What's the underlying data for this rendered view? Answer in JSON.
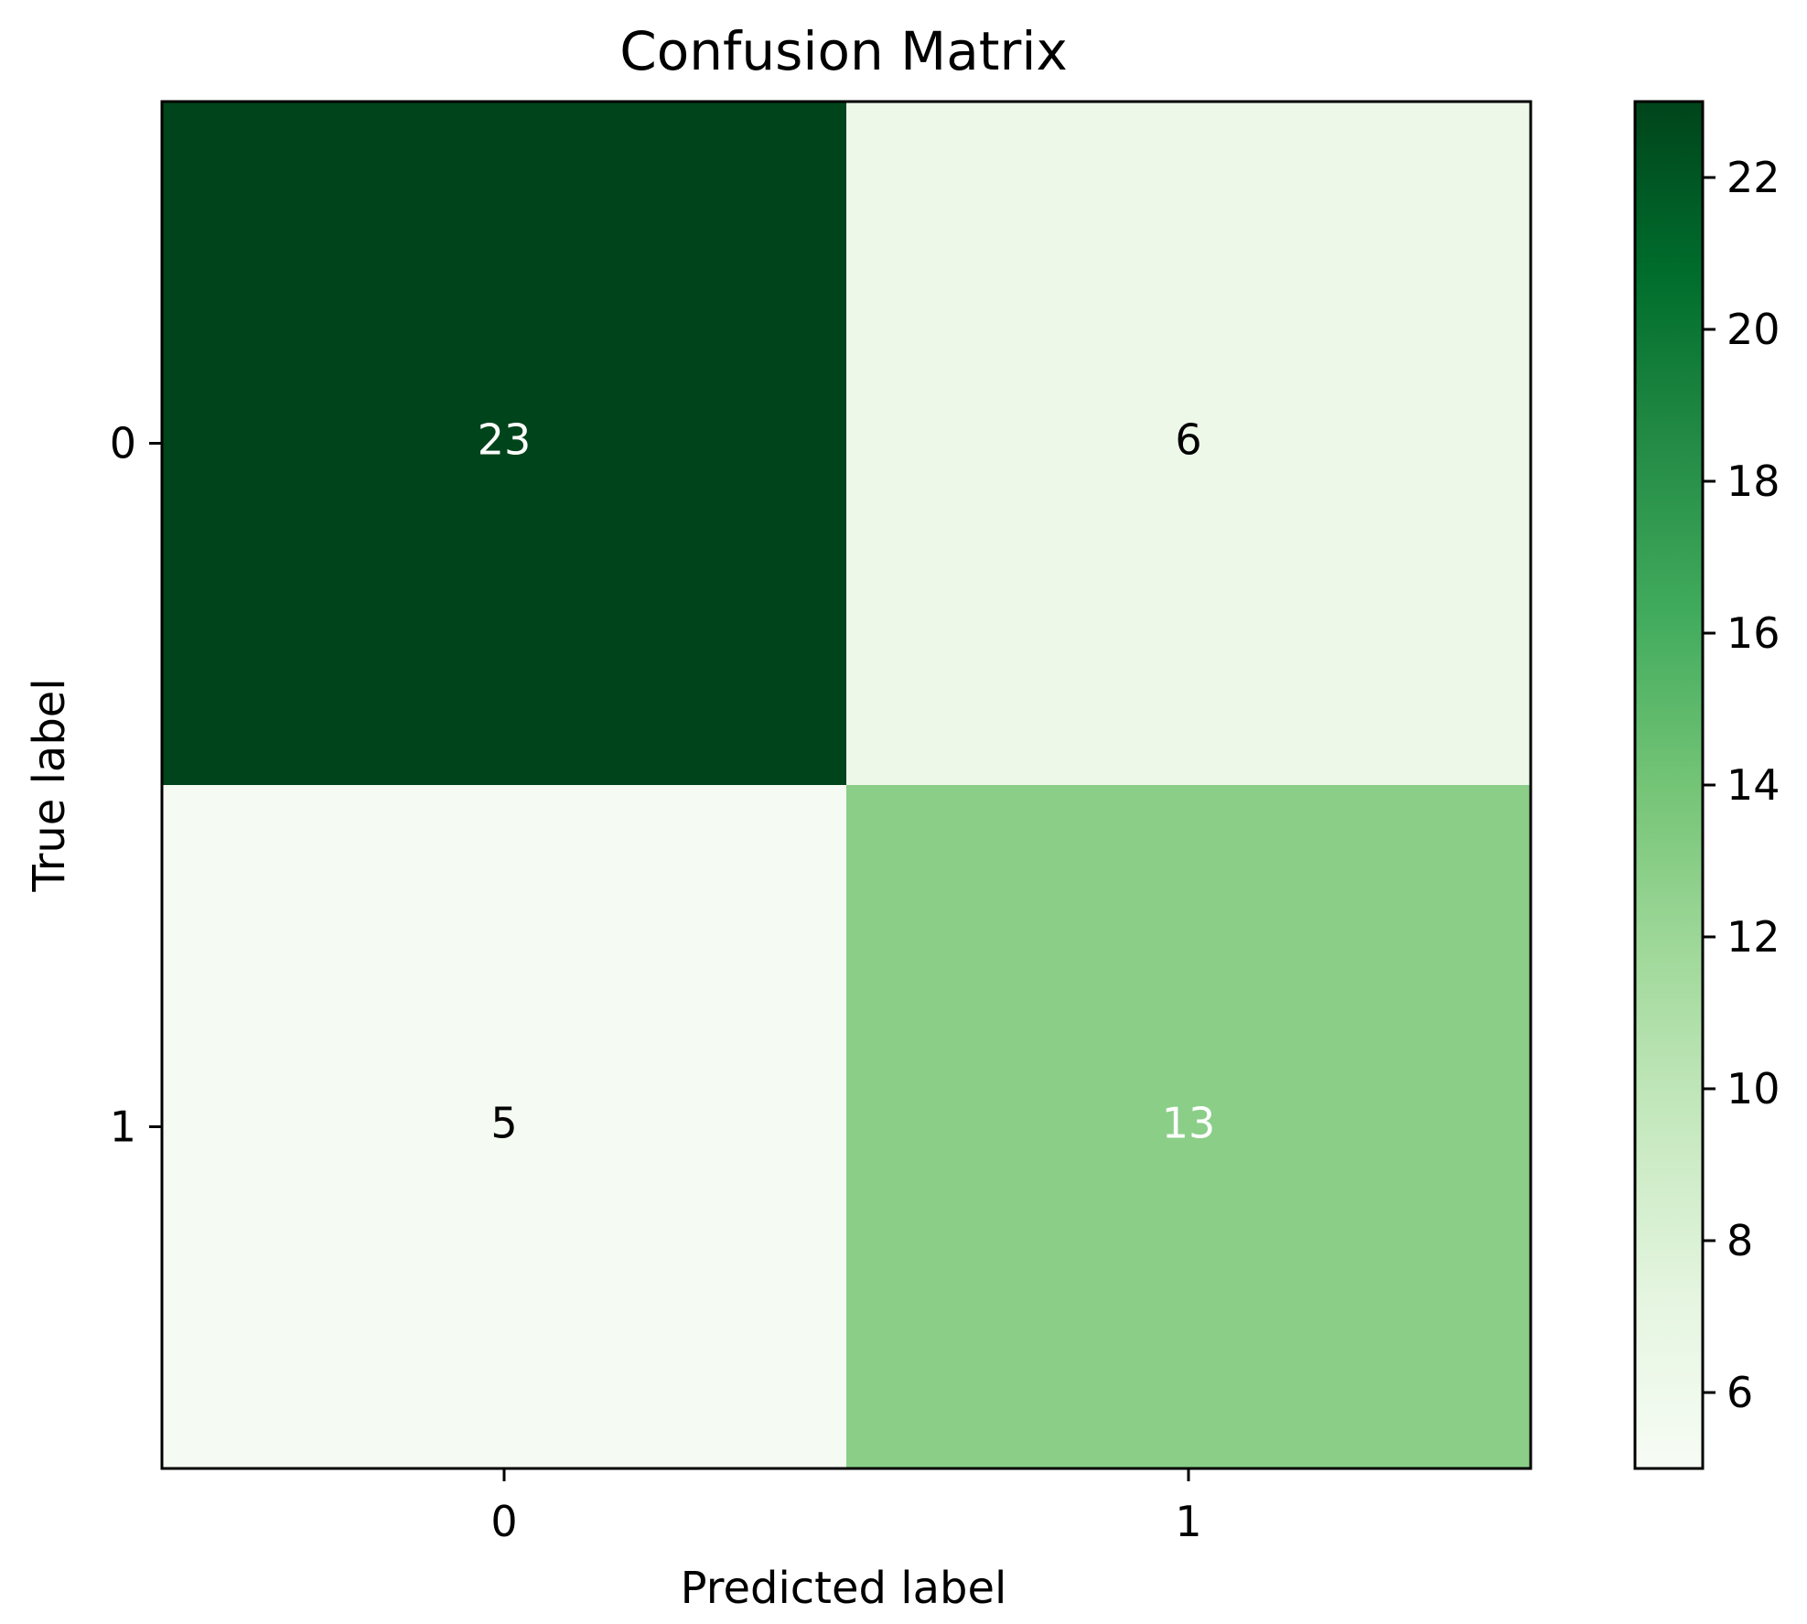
{
  "chart_data": {
    "type": "heatmap",
    "title": "Confusion Matrix",
    "xlabel": "Predicted label",
    "ylabel": "True label",
    "x_categories": [
      "0",
      "1"
    ],
    "y_categories": [
      "0",
      "1"
    ],
    "matrix": [
      [
        23,
        6
      ],
      [
        5,
        13
      ]
    ],
    "cell_labels": [
      [
        "23",
        "6"
      ],
      [
        "5",
        "13"
      ]
    ],
    "colormap": "Greens",
    "colorbar": {
      "range": [
        5,
        23
      ],
      "ticks": [
        6,
        8,
        10,
        12,
        14,
        16,
        18,
        20,
        22
      ],
      "tick_labels": [
        "6",
        "8",
        "10",
        "12",
        "14",
        "16",
        "18",
        "20",
        "22"
      ],
      "placement": "right"
    },
    "grid": false,
    "colors": {
      "cell_0_0": "#00441b",
      "cell_0_1": "#edf8e9",
      "cell_1_0": "#f5fbf3",
      "cell_1_1": "#8bce88",
      "text_light": "#ffffff",
      "text_dark": "#000000"
    }
  }
}
